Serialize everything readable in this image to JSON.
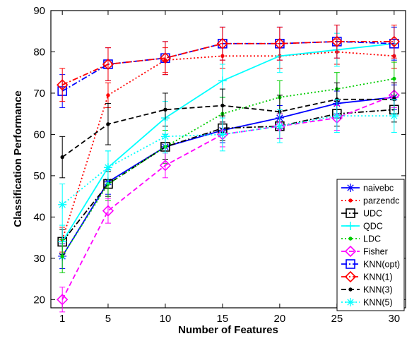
{
  "chart_data": {
    "type": "line",
    "title": "",
    "xlabel": "Number of Features",
    "ylabel": "Classification Performance",
    "x": [
      1,
      5,
      10,
      15,
      20,
      25,
      30
    ],
    "xticks": [
      "1",
      "5",
      "10",
      "15",
      "20",
      "25",
      "30"
    ],
    "yticks": [
      "20",
      "30",
      "40",
      "50",
      "60",
      "70",
      "80",
      "90"
    ],
    "xlim": [
      0,
      31
    ],
    "ylim": [
      18,
      90
    ],
    "grid": false,
    "legend_position": "bottom-right",
    "series": [
      {
        "name": "naivebc",
        "color": "#0000ff",
        "line": "solid",
        "marker": "asterisk",
        "values": [
          30.5,
          48.5,
          57,
          61,
          64,
          67.5,
          69
        ],
        "errors": [
          3,
          3,
          3,
          3,
          3,
          3,
          3
        ]
      },
      {
        "name": "parzendc",
        "color": "#ff0000",
        "line": "dotted",
        "marker": "point",
        "values": [
          34.5,
          69.5,
          78,
          79,
          79,
          80,
          79
        ],
        "errors": [
          3,
          3,
          3,
          3,
          3,
          3,
          3
        ]
      },
      {
        "name": "UDC",
        "color": "#000000",
        "line": "dashdot",
        "marker": "square",
        "values": [
          34,
          48,
          57,
          61.5,
          62,
          65,
          66
        ],
        "errors": [
          3,
          3,
          3,
          3,
          3,
          3,
          3
        ]
      },
      {
        "name": "QDC",
        "color": "#00ffff",
        "line": "solid",
        "marker": "plus",
        "values": [
          34,
          52,
          64,
          73,
          79,
          80.5,
          82
        ],
        "errors": [
          4,
          4,
          4,
          4,
          4,
          4,
          4
        ]
      },
      {
        "name": "LDC",
        "color": "#00cc00",
        "line": "dotted",
        "marker": "point",
        "values": [
          30.5,
          48,
          57,
          65,
          69,
          71,
          73.5
        ],
        "errors": [
          4,
          4,
          4,
          4,
          4,
          4,
          4
        ]
      },
      {
        "name": "Fisher",
        "color": "#ff00ff",
        "line": "dashed",
        "marker": "diamond",
        "values": [
          20,
          41.5,
          52.5,
          60,
          62,
          64,
          69.5
        ],
        "errors": [
          3,
          3,
          3,
          3,
          3,
          3,
          3
        ]
      },
      {
        "name": "KNN(opt)",
        "color": "#0000ff",
        "line": "dashdot",
        "marker": "square",
        "values": [
          70.5,
          77,
          78.5,
          82,
          82,
          82.5,
          82
        ],
        "errors": [
          4,
          4,
          4,
          4,
          4,
          4,
          4
        ]
      },
      {
        "name": "KNN(1)",
        "color": "#ff0000",
        "line": "dashdot",
        "marker": "diamond",
        "values": [
          72,
          77,
          78.5,
          82,
          82,
          82.5,
          82.5
        ],
        "errors": [
          4,
          4,
          4,
          4,
          4,
          4,
          4
        ]
      },
      {
        "name": "KNN(3)",
        "color": "#000000",
        "line": "dashed",
        "marker": "point",
        "values": [
          54.5,
          62.5,
          66,
          67,
          65.5,
          68.5,
          68.5
        ],
        "errors": [
          5,
          5,
          4,
          4,
          4,
          4,
          4
        ]
      },
      {
        "name": "KNN(5)",
        "color": "#00ffff",
        "line": "dotted",
        "marker": "asterisk",
        "values": [
          43,
          52,
          59.5,
          60,
          62,
          64.5,
          64.5
        ],
        "errors": [
          5,
          4,
          4,
          4,
          4,
          4,
          4
        ]
      }
    ]
  }
}
